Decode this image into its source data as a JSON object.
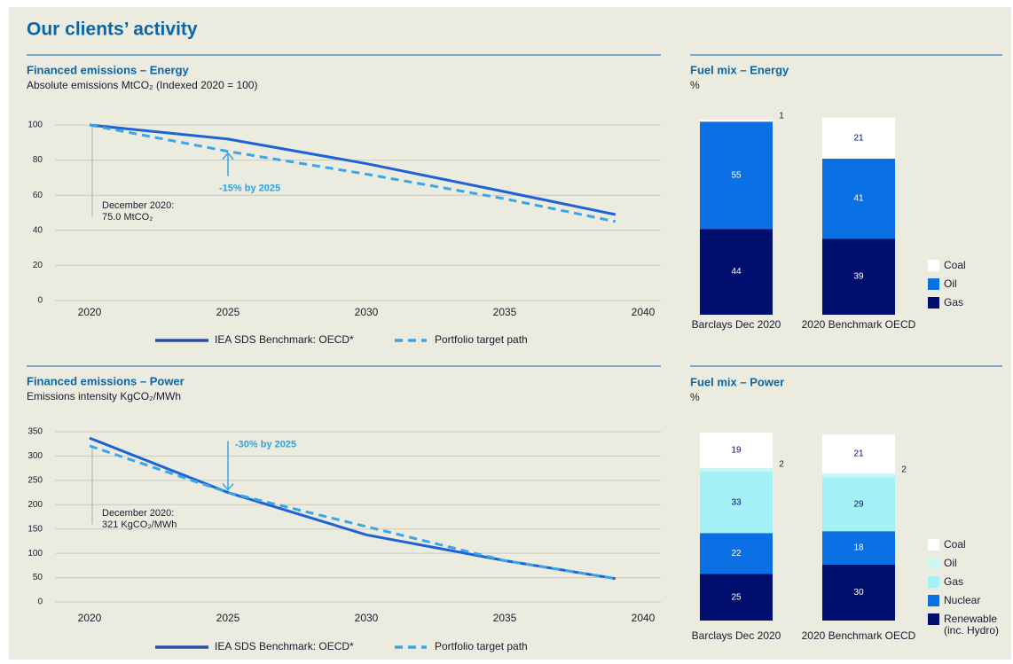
{
  "title": "Our clients’ activity",
  "chart_data": [
    {
      "type": "line",
      "title": "Financed emissions – Energy",
      "subtitle": "Absolute emissions MtCO₂ (Indexed 2020 = 100)",
      "x": [
        2020,
        2025,
        2030,
        2035,
        2039
      ],
      "xlim": [
        2020,
        2040
      ],
      "xticks": [
        2020,
        2025,
        2030,
        2035,
        2040
      ],
      "ylim": [
        0,
        100
      ],
      "yticks": [
        0,
        20,
        40,
        60,
        80,
        100
      ],
      "grid": true,
      "series": [
        {
          "name": "IEA SDS Benchmark: OECD*",
          "color": "#1d62d6",
          "dash": false,
          "values": [
            100,
            92,
            78,
            62,
            49
          ]
        },
        {
          "name": "Portfolio target path",
          "color": "#3aa6e6",
          "dash": true,
          "values": [
            100,
            85,
            72,
            58,
            45
          ]
        }
      ],
      "annotations": [
        "-15% by 2025",
        "December 2020:",
        "75.0 MtCO₂"
      ]
    },
    {
      "type": "line",
      "title": "Financed emissions – Power",
      "subtitle": "Emissions intensity KgCO₂/MWh",
      "x": [
        2020,
        2025,
        2030,
        2035,
        2039
      ],
      "xlim": [
        2020,
        2040
      ],
      "xticks": [
        2020,
        2025,
        2030,
        2035,
        2040
      ],
      "ylim": [
        0,
        350
      ],
      "yticks": [
        0,
        50,
        100,
        150,
        200,
        250,
        300,
        350
      ],
      "grid": true,
      "series": [
        {
          "name": "IEA SDS Benchmark: OECD*",
          "color": "#1d62d6",
          "dash": false,
          "values": [
            337,
            225,
            138,
            85,
            48
          ]
        },
        {
          "name": "Portfolio target path",
          "color": "#3aa6e6",
          "dash": true,
          "values": [
            321,
            225,
            155,
            85,
            48
          ]
        }
      ],
      "annotations": [
        "-30% by 2025",
        "December 2020:",
        "321 KgCO₂/MWh"
      ]
    },
    {
      "type": "stacked_bar",
      "title": "Fuel mix – Energy",
      "subtitle": "%",
      "categories": [
        "Barclays Dec 2020",
        "2020 Benchmark OECD"
      ],
      "series": [
        {
          "name": "Gas",
          "color": "#000f6e",
          "values": [
            44,
            39
          ]
        },
        {
          "name": "Oil",
          "color": "#0b70e3",
          "values": [
            55,
            41
          ]
        },
        {
          "name": "Coal",
          "color": "#ffffff",
          "values": [
            1,
            21
          ]
        }
      ]
    },
    {
      "type": "stacked_bar",
      "title": "Fuel mix – Power",
      "subtitle": "%",
      "categories": [
        "Barclays Dec 2020",
        "2020 Benchmark OECD"
      ],
      "series": [
        {
          "name": "Renewable (inc. Hydro)",
          "color": "#000f6e",
          "values": [
            25,
            30
          ]
        },
        {
          "name": "Nuclear",
          "color": "#0b70e3",
          "values": [
            22,
            18
          ]
        },
        {
          "name": "Gas",
          "color": "#a4f1f8",
          "values": [
            33,
            29
          ]
        },
        {
          "name": "Oil",
          "color": "#ccf6f4",
          "values": [
            2,
            2
          ]
        },
        {
          "name": "Coal",
          "color": "#ffffff",
          "values": [
            19,
            21
          ]
        }
      ]
    }
  ]
}
